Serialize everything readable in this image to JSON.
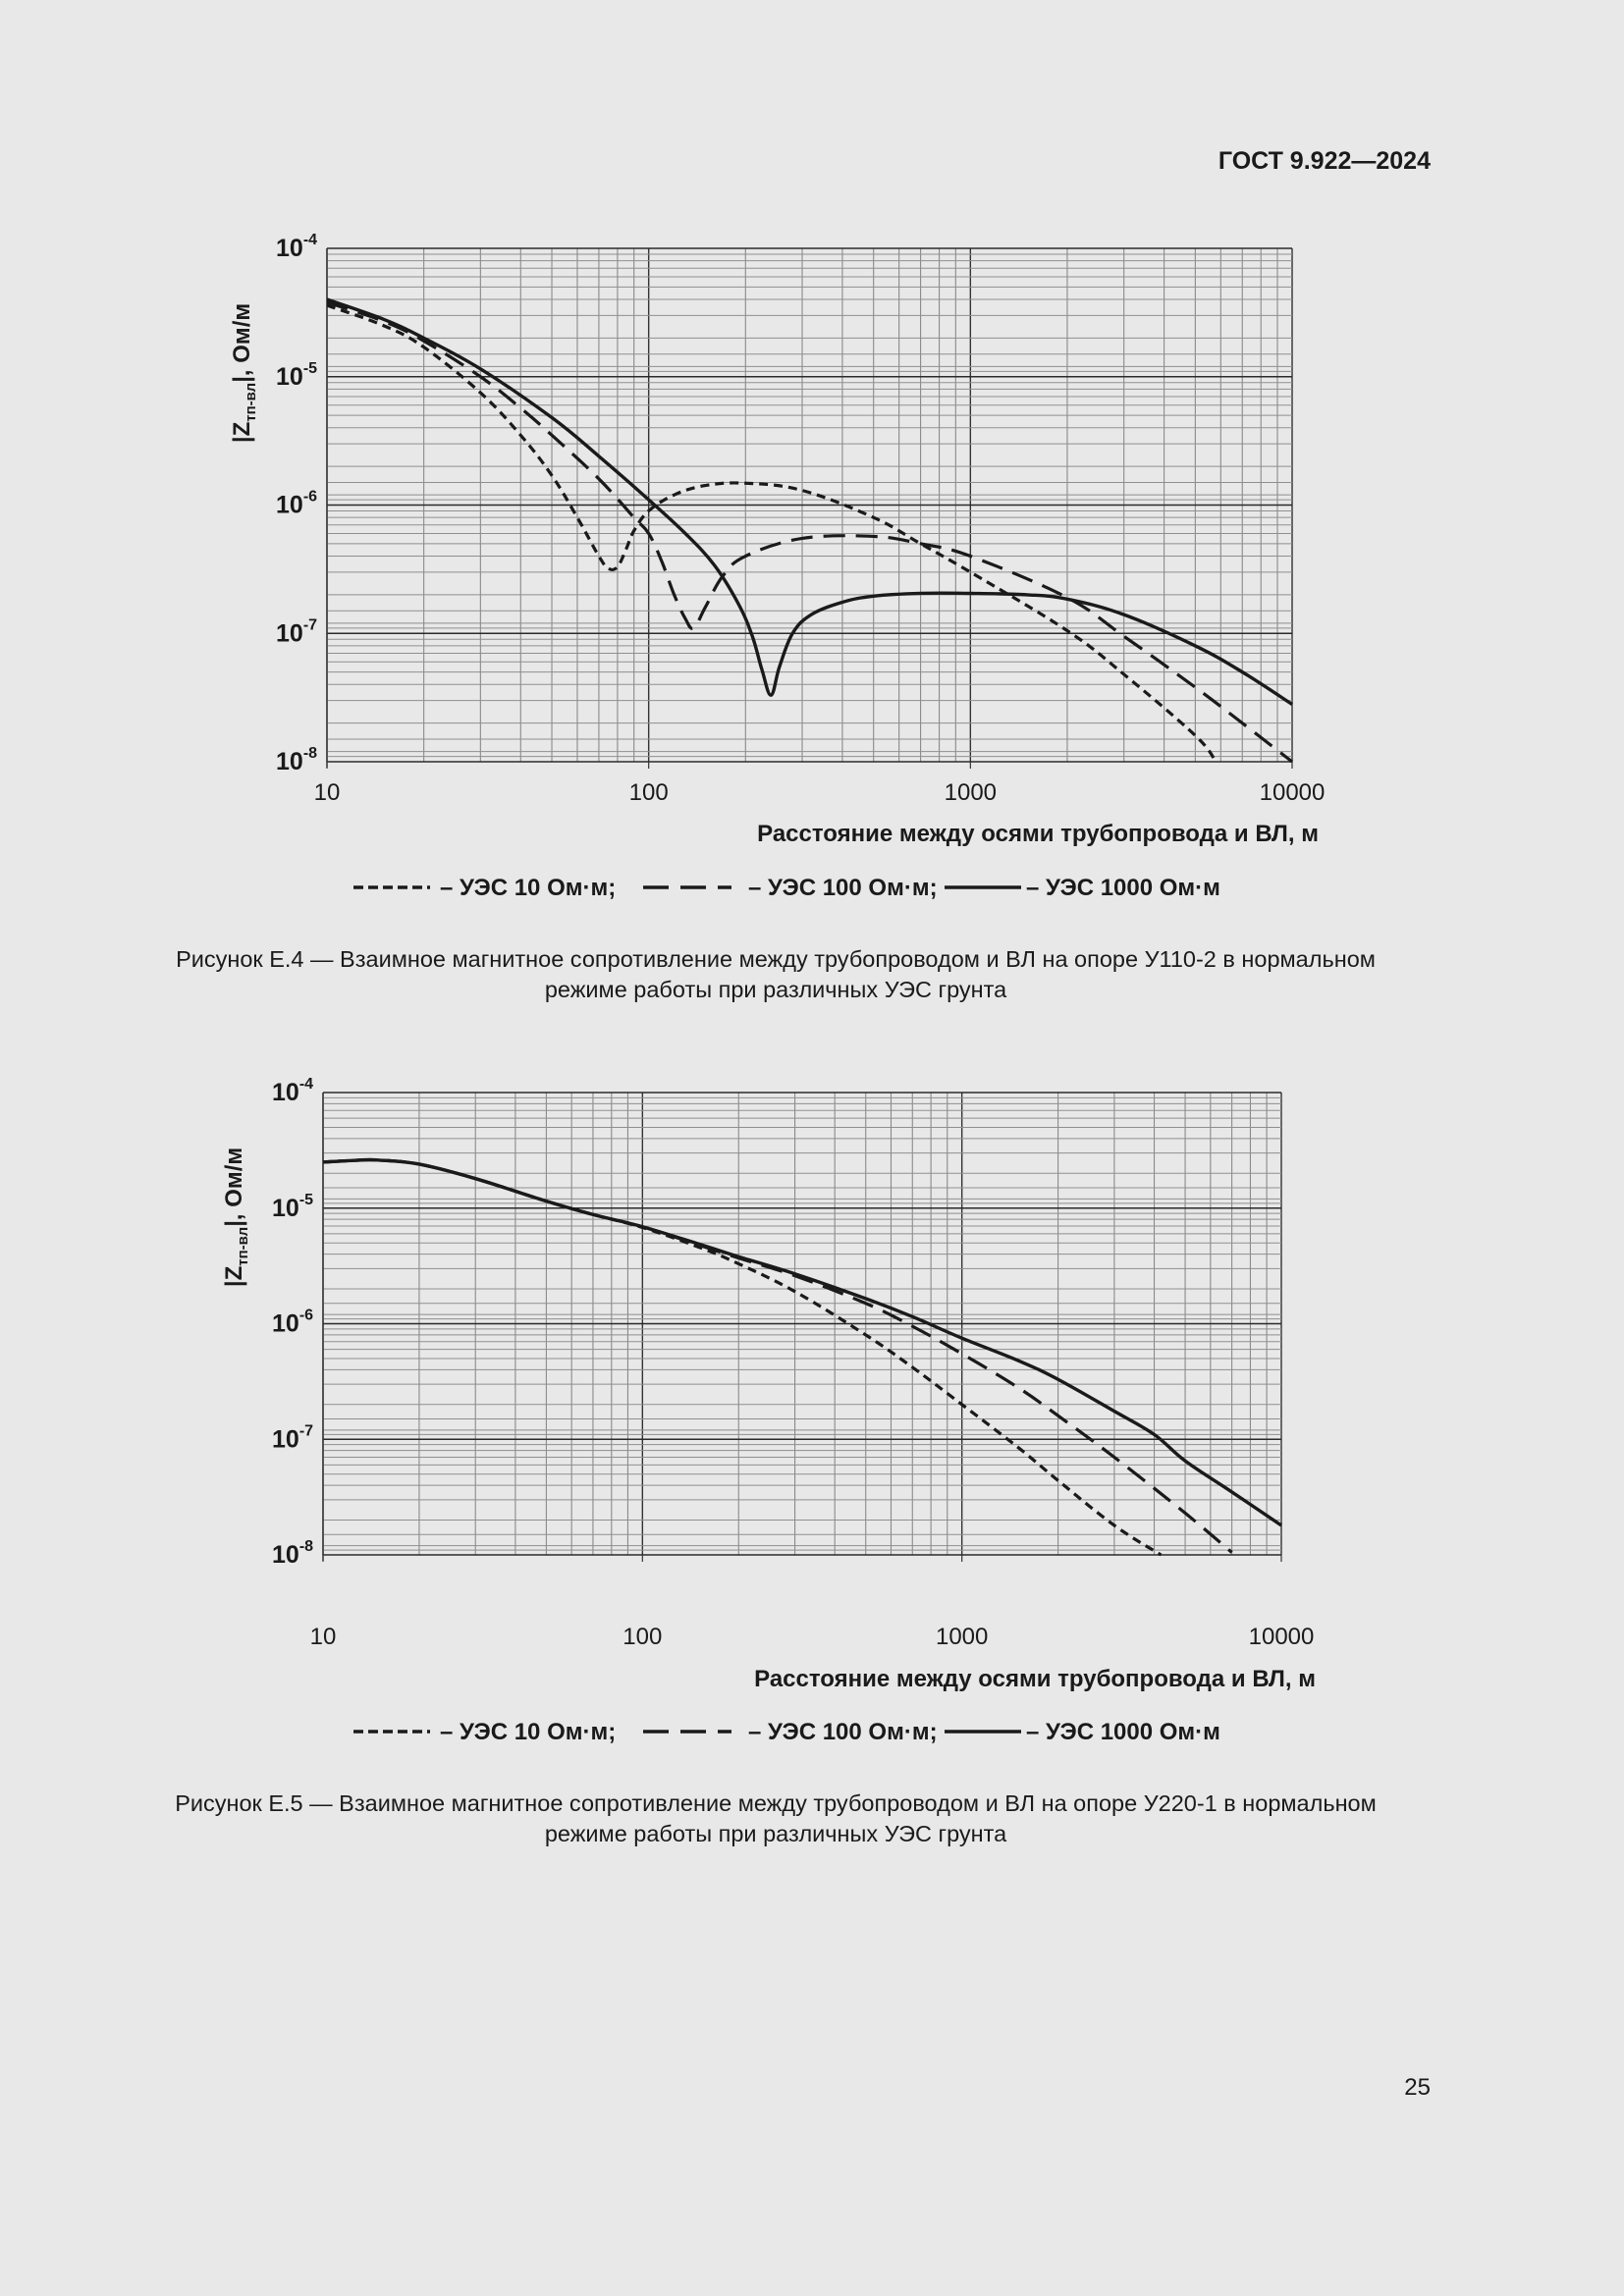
{
  "header": {
    "doc_code": "ГОСТ 9.922—2024"
  },
  "page_number": "25",
  "figures": [
    {
      "caption_line1": "Рисунок Е.4 — Взаимное магнитное сопротивление между трубопроводом и ВЛ на опоре У110-2 в нормальном",
      "caption_line2": "режиме работы при различных УЭС грунта"
    },
    {
      "caption_line1": "Рисунок Е.5 — Взаимное магнитное сопротивление между трубопроводом и ВЛ на опоре У220-1 в нормальном",
      "caption_line2": "режиме работы при различных УЭС грунта"
    }
  ],
  "chart_data": [
    {
      "type": "line",
      "title": "Рисунок Е.4 — Взаимное магнитное сопротивление между трубопроводом и ВЛ на опоре У110-2 в нормальном режиме работы при различных УЭС грунта",
      "xlabel": "Расстояние между осями трубопровода и ВЛ, м",
      "ylabel": "|Zтп-вл|, Ом/м",
      "ylabel_main": "|Z",
      "ylabel_sub": "тп-вл",
      "ylabel_tail": "|, Ом/м",
      "xscale": "log",
      "yscale": "log",
      "xlim": [
        10,
        10000
      ],
      "ylim": [
        1e-08,
        0.0001
      ],
      "xticks": [
        "10",
        "100",
        "1000",
        "10000"
      ],
      "yticks": [
        "-8",
        "-7",
        "-6",
        "-5",
        "-4"
      ],
      "grid": true,
      "legend_position": "bottom",
      "legend": [
        "– УЭС 10 Ом·м;",
        "– УЭС 100 Ом·м;",
        "– УЭС 1000 Ом·м"
      ],
      "series": [
        {
          "name": "УЭС 10 Ом·м",
          "style": "short-dash",
          "x": [
            10,
            15,
            20,
            30,
            40,
            50,
            60,
            70,
            75,
            80,
            85,
            90,
            100,
            120,
            150,
            200,
            300,
            500,
            700,
            1000,
            2000,
            3000,
            5000,
            5800
          ],
          "y": [
            3.6e-05,
            2.5e-05,
            1.7e-05,
            7.5e-06,
            3.5e-06,
            1.7e-06,
            8e-07,
            4e-07,
            3.2e-07,
            3.3e-07,
            4.5e-07,
            6.3e-07,
            9e-07,
            1.2e-06,
            1.42e-06,
            1.48e-06,
            1.3e-06,
            8e-07,
            5e-07,
            3e-07,
            1.05e-07,
            4.8e-08,
            1.6e-08,
            1e-08
          ]
        },
        {
          "name": "УЭС 100 Ом·м",
          "style": "long-dash",
          "x": [
            10,
            15,
            20,
            30,
            40,
            50,
            70,
            90,
            100,
            110,
            120,
            130,
            138,
            150,
            170,
            200,
            300,
            500,
            700,
            1000,
            2000,
            3000,
            5000,
            7000,
            10000
          ],
          "y": [
            3.8e-05,
            2.7e-05,
            1.9e-05,
            1e-05,
            5.7e-06,
            3.5e-06,
            1.6e-06,
            8e-07,
            6e-07,
            3.6e-07,
            2e-07,
            1.3e-07,
            1.1e-07,
            1.6e-07,
            2.8e-07,
            4e-07,
            5.5e-07,
            5.7e-07,
            5e-07,
            4e-07,
            1.9e-07,
            9.5e-08,
            3.8e-08,
            2e-08,
            1e-08
          ]
        },
        {
          "name": "УЭС 1000 Ом·м",
          "style": "solid",
          "x": [
            10,
            15,
            20,
            30,
            50,
            70,
            100,
            130,
            160,
            190,
            210,
            225,
            240,
            255,
            280,
            320,
            400,
            500,
            700,
            1000,
            1500,
            2000,
            3000,
            5000,
            7000,
            10000
          ],
          "y": [
            4e-05,
            2.8e-05,
            2e-05,
            1.15e-05,
            4.8e-06,
            2.4e-06,
            1.1e-06,
            6e-07,
            3.4e-07,
            1.7e-07,
            9.5e-08,
            5.2e-08,
            3.3e-08,
            5.5e-08,
            1e-07,
            1.4e-07,
            1.75e-07,
            1.95e-07,
            2.05e-07,
            2.05e-07,
            2e-07,
            1.85e-07,
            1.4e-07,
            8e-08,
            5e-08,
            2.8e-08
          ]
        }
      ]
    },
    {
      "type": "line",
      "title": "Рисунок Е.5 — Взаимное магнитное сопротивление между трубопроводом и ВЛ на опоре У220-1 в нормальном режиме работы при различных УЭС грунта",
      "xlabel": "Расстояние между осями трубопровода и ВЛ, м",
      "ylabel": "|Zтп-вл|, Ом/м",
      "ylabel_main": "|Z",
      "ylabel_sub": "тп-вл",
      "ylabel_tail": "|, Ом/м",
      "xscale": "log",
      "yscale": "log",
      "xlim": [
        10,
        10000
      ],
      "ylim": [
        1e-08,
        0.0001
      ],
      "xticks": [
        "10",
        "100",
        "1000",
        "10000"
      ],
      "yticks": [
        "-8",
        "-7",
        "-6",
        "-5",
        "-4"
      ],
      "grid": true,
      "legend_position": "bottom",
      "legend": [
        "– УЭС 10 Ом·м;",
        "– УЭС 100 Ом·м;",
        "– УЭС 1000 Ом·м"
      ],
      "series": [
        {
          "name": "УЭС 10 Ом·м",
          "style": "short-dash",
          "x": [
            10,
            13,
            15,
            20,
            30,
            50,
            70,
            100,
            150,
            200,
            300,
            500,
            700,
            1000,
            1500,
            2000,
            3000,
            4200
          ],
          "y": [
            2.5e-05,
            2.6e-05,
            2.6e-05,
            2.4e-05,
            1.8e-05,
            1.15e-05,
            8.8e-06,
            6.8e-06,
            4.6e-06,
            3.3e-06,
            1.9e-06,
            8e-07,
            4.2e-07,
            2e-07,
            8.5e-08,
            4.4e-08,
            1.8e-08,
            1e-08
          ]
        },
        {
          "name": "УЭС 100 Ом·м",
          "style": "long-dash",
          "x": [
            10,
            13,
            15,
            20,
            30,
            50,
            70,
            100,
            150,
            200,
            300,
            500,
            700,
            1000,
            1500,
            2000,
            3000,
            5000,
            7000
          ],
          "y": [
            2.5e-05,
            2.6e-05,
            2.6e-05,
            2.4e-05,
            1.8e-05,
            1.15e-05,
            8.8e-06,
            6.9e-06,
            4.8e-06,
            3.7e-06,
            2.6e-06,
            1.5e-06,
            9.5e-07,
            5.5e-07,
            2.8e-07,
            1.6e-07,
            7e-08,
            2.3e-08,
            1.05e-08
          ]
        },
        {
          "name": "УЭС 1000 Ом·м",
          "style": "solid",
          "x": [
            10,
            13,
            15,
            20,
            30,
            50,
            70,
            100,
            150,
            200,
            300,
            500,
            700,
            1000,
            1500,
            2000,
            3000,
            4000,
            5000,
            7000,
            10000
          ],
          "y": [
            2.5e-05,
            2.6e-05,
            2.6e-05,
            2.4e-05,
            1.8e-05,
            1.15e-05,
            8.8e-06,
            6.9e-06,
            4.9e-06,
            3.8e-06,
            2.7e-06,
            1.65e-06,
            1.15e-06,
            7.5e-07,
            4.8e-07,
            3.3e-07,
            1.75e-07,
            1.1e-07,
            6.5e-08,
            3.5e-08,
            1.8e-08
          ]
        }
      ]
    }
  ]
}
